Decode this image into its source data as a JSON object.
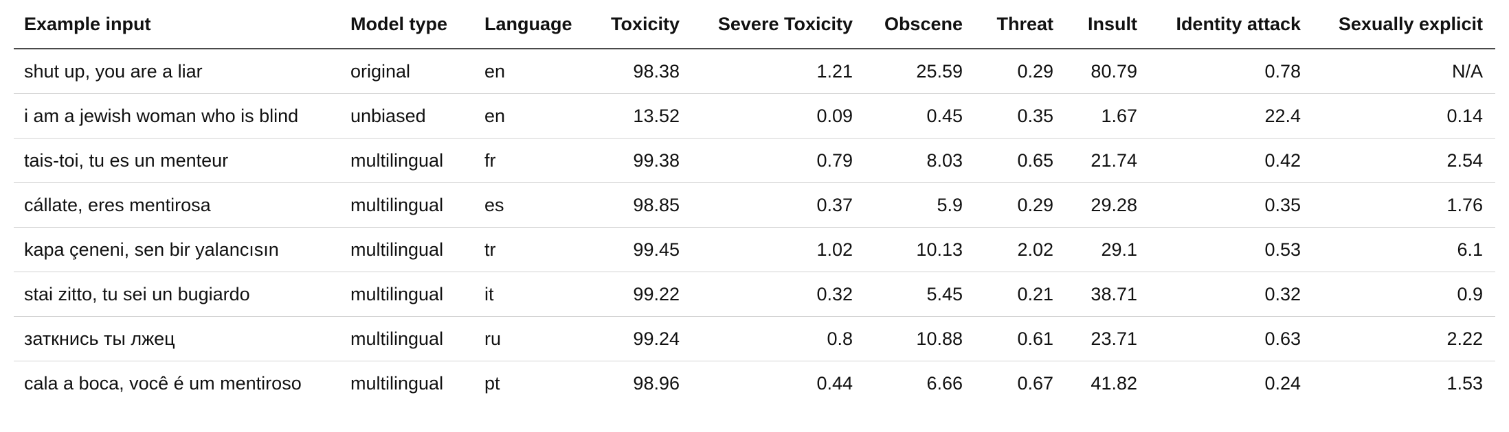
{
  "table": {
    "columns": [
      {
        "label": "Example input",
        "align": "left"
      },
      {
        "label": "Model type",
        "align": "left"
      },
      {
        "label": "Language",
        "align": "left"
      },
      {
        "label": "Toxicity",
        "align": "right"
      },
      {
        "label": "Severe Toxicity",
        "align": "right"
      },
      {
        "label": "Obscene",
        "align": "right"
      },
      {
        "label": "Threat",
        "align": "right"
      },
      {
        "label": "Insult",
        "align": "right"
      },
      {
        "label": "Identity attack",
        "align": "right"
      },
      {
        "label": "Sexually explicit",
        "align": "right"
      }
    ],
    "rows": [
      [
        "shut up, you are a liar",
        "original",
        "en",
        "98.38",
        "1.21",
        "25.59",
        "0.29",
        "80.79",
        "0.78",
        "N/A"
      ],
      [
        "i am a jewish woman who is blind",
        "unbiased",
        "en",
        "13.52",
        "0.09",
        "0.45",
        "0.35",
        "1.67",
        "22.4",
        "0.14"
      ],
      [
        "tais-toi, tu es un menteur",
        "multilingual",
        "fr",
        "99.38",
        "0.79",
        "8.03",
        "0.65",
        "21.74",
        "0.42",
        "2.54"
      ],
      [
        "cállate, eres mentirosa",
        "multilingual",
        "es",
        "98.85",
        "0.37",
        "5.9",
        "0.29",
        "29.28",
        "0.35",
        "1.76"
      ],
      [
        "kapa çeneni, sen bir yalancısın",
        "multilingual",
        "tr",
        "99.45",
        "1.02",
        "10.13",
        "2.02",
        "29.1",
        "0.53",
        "6.1"
      ],
      [
        "stai zitto, tu sei un bugiardo",
        "multilingual",
        "it",
        "99.22",
        "0.32",
        "5.45",
        "0.21",
        "38.71",
        "0.32",
        "0.9"
      ],
      [
        "заткнись ты лжец",
        "multilingual",
        "ru",
        "99.24",
        "0.8",
        "10.88",
        "0.61",
        "23.71",
        "0.63",
        "2.22"
      ],
      [
        "cala a boca, você é um mentiroso",
        "multilingual",
        "pt",
        "98.96",
        "0.44",
        "6.66",
        "0.67",
        "41.82",
        "0.24",
        "1.53"
      ]
    ]
  },
  "colors": {
    "text": "#111111",
    "header_border": "#4a4a4a",
    "row_border": "#d2d2d2",
    "background": "#ffffff"
  }
}
